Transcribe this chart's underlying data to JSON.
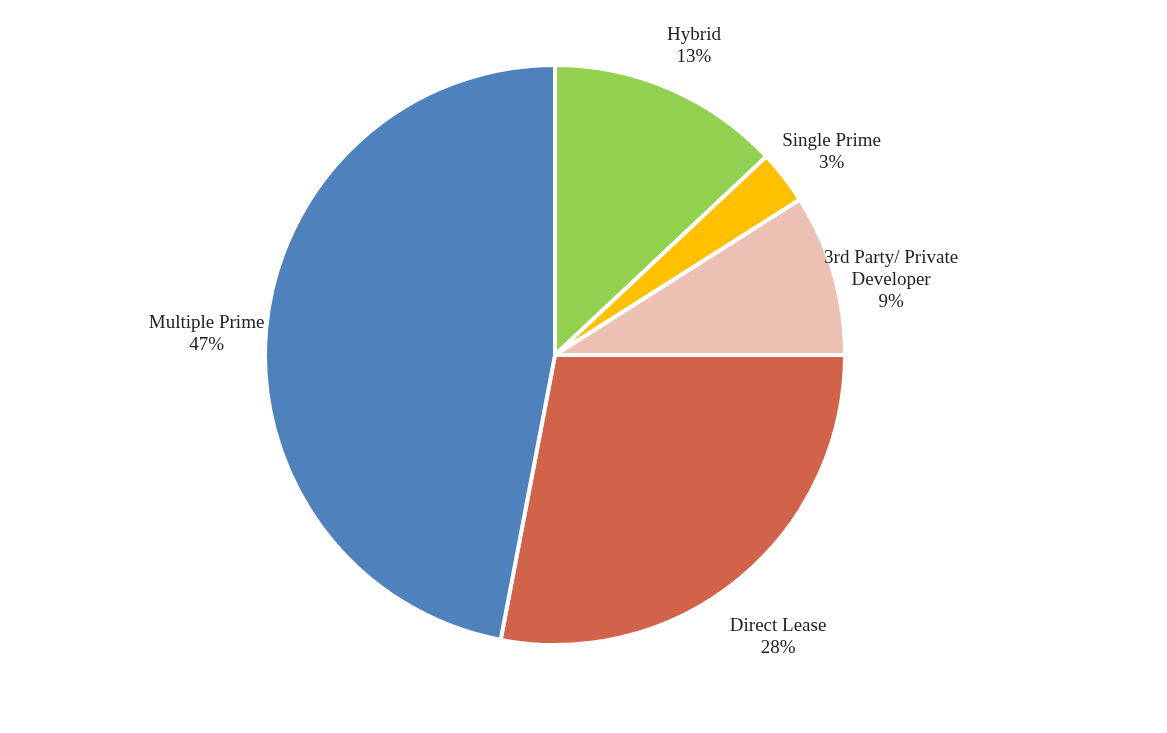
{
  "chart_data": {
    "type": "pie",
    "categories": [
      "Hybrid",
      "Single Prime",
      "3rd Party/ Private Developer",
      "Direct Lease",
      "Multiple Prime"
    ],
    "values": [
      13,
      3,
      9,
      28,
      47
    ],
    "value_labels": [
      "13%",
      "3%",
      "9%",
      "28%",
      "47%"
    ],
    "colors": [
      "#92d050",
      "#ffc000",
      "#ecc0b2",
      "#d0634a",
      "#4f81bd"
    ],
    "legend": false
  }
}
